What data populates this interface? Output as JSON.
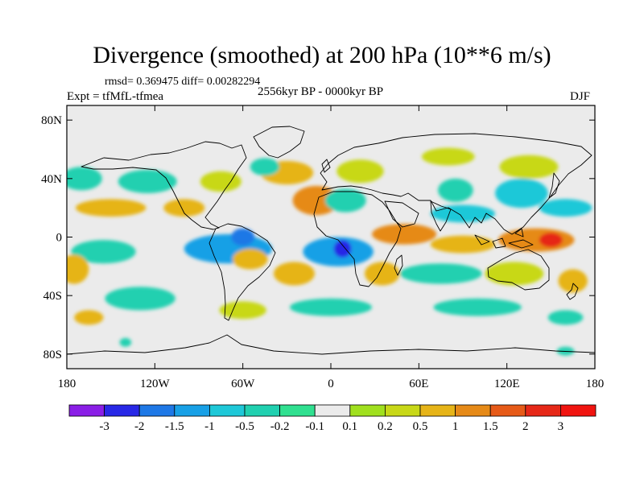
{
  "title": "Divergence (smoothed) at 200 hPa (10**6 m/s)",
  "stats": "rmsd= 0.369475 diff= 0.00282294",
  "experiment": "Expt = tfMfL-tfmea",
  "period": "2556kyr BP - 0000kyr BP",
  "season": "DJF",
  "map": {
    "lon_range": [
      -180,
      180
    ],
    "lat_range": [
      -90,
      90
    ],
    "lon_ticks": [
      {
        "value": -180,
        "label": "180"
      },
      {
        "value": -120,
        "label": "120W"
      },
      {
        "value": -60,
        "label": "60W"
      },
      {
        "value": 0,
        "label": "0"
      },
      {
        "value": 60,
        "label": "60E"
      },
      {
        "value": 120,
        "label": "120E"
      },
      {
        "value": 180,
        "label": "180"
      }
    ],
    "lat_ticks": [
      {
        "value": 80,
        "label": "80N"
      },
      {
        "value": 40,
        "label": "40N"
      },
      {
        "value": 0,
        "label": "0"
      },
      {
        "value": -40,
        "label": "40S"
      },
      {
        "value": -80,
        "label": "80S"
      }
    ],
    "background_color": "#ebebeb"
  },
  "colorbar": {
    "labels": [
      "-3",
      "-2",
      "-1.5",
      "-1",
      "-0.5",
      "-0.2",
      "-0.1",
      "0.1",
      "0.2",
      "0.5",
      "1",
      "1.5",
      "2",
      "3"
    ],
    "colors": [
      "#8a1ee6",
      "#2828e6",
      "#1e78e6",
      "#18a0e6",
      "#1ec8d8",
      "#20d0b0",
      "#30e090",
      "#ebebeb",
      "#a0e01e",
      "#c8d818",
      "#e6b418",
      "#e68a18",
      "#e65a18",
      "#e62818",
      "#f01410"
    ]
  },
  "anomalies": [
    {
      "lon": -170,
      "lat": 40,
      "rx": 14,
      "ry": 8,
      "v": -0.3
    },
    {
      "lon": -125,
      "lat": 38,
      "rx": 20,
      "ry": 8,
      "v": -0.3
    },
    {
      "lon": -150,
      "lat": 20,
      "rx": 24,
      "ry": 6,
      "v": 0.6
    },
    {
      "lon": -100,
      "lat": 20,
      "rx": 14,
      "ry": 6,
      "v": 0.6
    },
    {
      "lon": -75,
      "lat": 38,
      "rx": 14,
      "ry": 7,
      "v": 0.3
    },
    {
      "lon": -30,
      "lat": 44,
      "rx": 18,
      "ry": 8,
      "v": 0.6
    },
    {
      "lon": -45,
      "lat": 48,
      "rx": 10,
      "ry": 6,
      "v": -0.3
    },
    {
      "lon": 20,
      "lat": 45,
      "rx": 16,
      "ry": 8,
      "v": 0.3
    },
    {
      "lon": -10,
      "lat": 25,
      "rx": 16,
      "ry": 10,
      "v": 1.0
    },
    {
      "lon": 10,
      "lat": 25,
      "rx": 14,
      "ry": 8,
      "v": -0.5
    },
    {
      "lon": 80,
      "lat": 55,
      "rx": 18,
      "ry": 6,
      "v": 0.3
    },
    {
      "lon": 85,
      "lat": 32,
      "rx": 12,
      "ry": 8,
      "v": -0.3
    },
    {
      "lon": 135,
      "lat": 48,
      "rx": 20,
      "ry": 8,
      "v": 0.3
    },
    {
      "lon": 130,
      "lat": 30,
      "rx": 18,
      "ry": 10,
      "v": -0.8
    },
    {
      "lon": 90,
      "lat": 16,
      "rx": 22,
      "ry": 6,
      "v": -0.8
    },
    {
      "lon": 50,
      "lat": 2,
      "rx": 22,
      "ry": 7,
      "v": 1.0
    },
    {
      "lon": 90,
      "lat": -5,
      "rx": 22,
      "ry": 6,
      "v": 0.6
    },
    {
      "lon": 140,
      "lat": -2,
      "rx": 26,
      "ry": 8,
      "v": 1.4
    },
    {
      "lon": 150,
      "lat": -2,
      "rx": 8,
      "ry": 5,
      "v": 2.2
    },
    {
      "lon": 160,
      "lat": 20,
      "rx": 18,
      "ry": 6,
      "v": -0.8
    },
    {
      "lon": -155,
      "lat": -10,
      "rx": 22,
      "ry": 8,
      "v": -0.3
    },
    {
      "lon": -175,
      "lat": -22,
      "rx": 10,
      "ry": 10,
      "v": 0.6
    },
    {
      "lon": -70,
      "lat": -8,
      "rx": 30,
      "ry": 10,
      "v": -1.2
    },
    {
      "lon": -60,
      "lat": 0,
      "rx": 8,
      "ry": 6,
      "v": -1.6
    },
    {
      "lon": -55,
      "lat": -15,
      "rx": 12,
      "ry": 7,
      "v": 0.6
    },
    {
      "lon": -25,
      "lat": -25,
      "rx": 14,
      "ry": 8,
      "v": 0.6
    },
    {
      "lon": 5,
      "lat": -10,
      "rx": 24,
      "ry": 10,
      "v": -1.2
    },
    {
      "lon": 8,
      "lat": -8,
      "rx": 6,
      "ry": 6,
      "v": -2.5
    },
    {
      "lon": 35,
      "lat": -25,
      "rx": 12,
      "ry": 8,
      "v": 0.6
    },
    {
      "lon": 75,
      "lat": -25,
      "rx": 28,
      "ry": 7,
      "v": -0.3
    },
    {
      "lon": 125,
      "lat": -25,
      "rx": 20,
      "ry": 8,
      "v": 0.3
    },
    {
      "lon": 165,
      "lat": -30,
      "rx": 10,
      "ry": 8,
      "v": 0.6
    },
    {
      "lon": -130,
      "lat": -42,
      "rx": 24,
      "ry": 8,
      "v": -0.3
    },
    {
      "lon": -60,
      "lat": -50,
      "rx": 16,
      "ry": 6,
      "v": 0.3
    },
    {
      "lon": 0,
      "lat": -48,
      "rx": 28,
      "ry": 6,
      "v": -0.3
    },
    {
      "lon": 100,
      "lat": -48,
      "rx": 30,
      "ry": 6,
      "v": -0.3
    },
    {
      "lon": -165,
      "lat": -55,
      "rx": 10,
      "ry": 5,
      "v": 0.6
    },
    {
      "lon": 160,
      "lat": -55,
      "rx": 12,
      "ry": 5,
      "v": -0.3
    },
    {
      "lon": -140,
      "lat": -72,
      "rx": 4,
      "ry": 3,
      "v": -0.3
    },
    {
      "lon": 160,
      "lat": -78,
      "rx": 6,
      "ry": 3,
      "v": -0.3
    }
  ]
}
